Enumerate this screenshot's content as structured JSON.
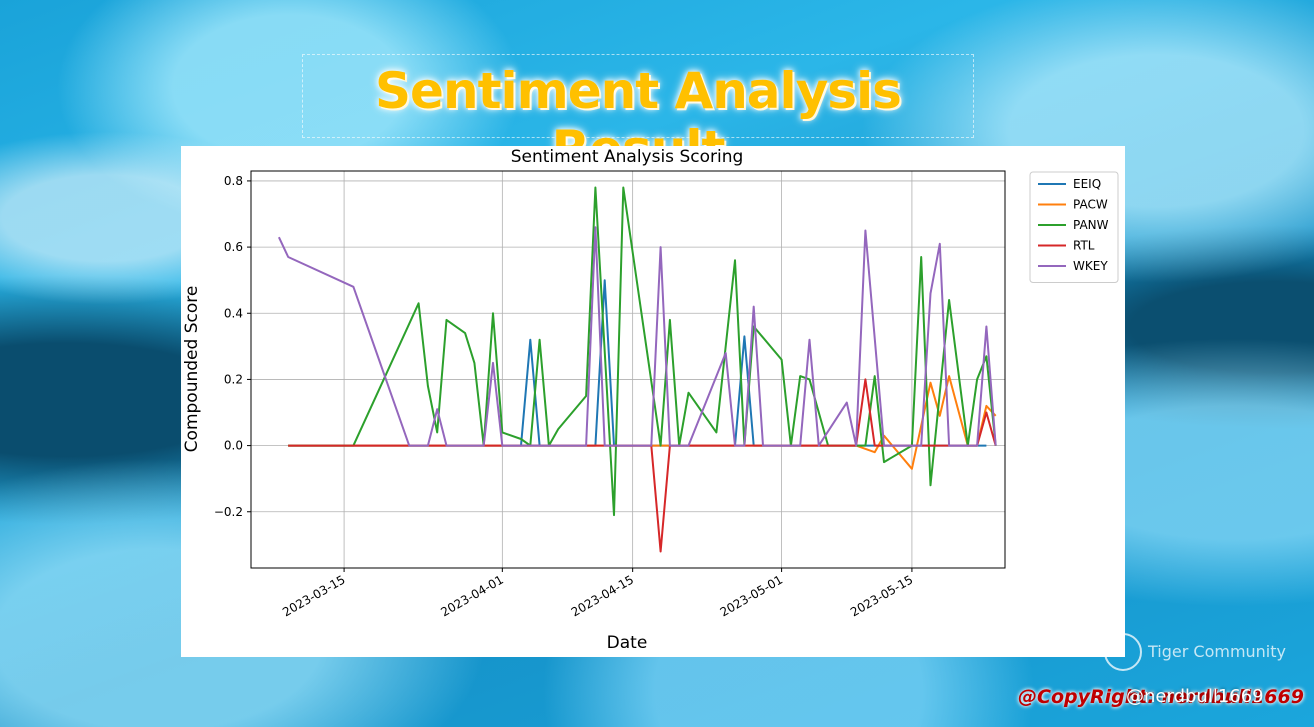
{
  "banner": {
    "title": "Sentiment Analysis Result"
  },
  "watermark": {
    "text": "Tiger Community",
    "icon": "tiger-community-logo-icon"
  },
  "footer": {
    "copyright": "@CopyRight: nerdbull1669",
    "handle": "@nerdbull1669"
  },
  "colors": {
    "EEIQ": "#1f77b4",
    "PACW": "#ff7f0e",
    "PANW": "#2ca02c",
    "RTL": "#d62728",
    "WKEY": "#9467bd",
    "title": "#ffc000",
    "copyright": "#c00000"
  },
  "chart_data": {
    "type": "line",
    "title": "Sentiment Analysis Scoring",
    "xlabel": "Date",
    "ylabel": "Compounded Score",
    "xlim": [
      "2023-03-05",
      "2023-05-25"
    ],
    "ylim": [
      -0.37,
      0.83
    ],
    "x_ticks": [
      "2023-03-15",
      "2023-04-01",
      "2023-04-15",
      "2023-05-01",
      "2023-05-15"
    ],
    "y_ticks": [
      -0.2,
      0.0,
      0.2,
      0.4,
      0.6,
      0.8
    ],
    "y_tick_labels": [
      "−0.2",
      "0.0",
      "0.2",
      "0.4",
      "0.6",
      "0.8"
    ],
    "grid": true,
    "legend_position": "outside-top-right",
    "series": [
      {
        "name": "EEIQ",
        "color": "#1f77b4",
        "points": [
          [
            "2023-03-09",
            0.0
          ],
          [
            "2023-04-03",
            0.0
          ],
          [
            "2023-04-04",
            0.32
          ],
          [
            "2023-04-05",
            0.0
          ],
          [
            "2023-04-11",
            0.0
          ],
          [
            "2023-04-12",
            0.5
          ],
          [
            "2023-04-13",
            0.0
          ],
          [
            "2023-04-26",
            0.0
          ],
          [
            "2023-04-27",
            0.33
          ],
          [
            "2023-04-28",
            0.0
          ],
          [
            "2023-05-23",
            0.0
          ]
        ]
      },
      {
        "name": "PACW",
        "color": "#ff7f0e",
        "points": [
          [
            "2023-03-09",
            0.0
          ],
          [
            "2023-05-09",
            0.0
          ],
          [
            "2023-05-11",
            -0.02
          ],
          [
            "2023-05-12",
            0.03
          ],
          [
            "2023-05-15",
            -0.07
          ],
          [
            "2023-05-17",
            0.19
          ],
          [
            "2023-05-18",
            0.09
          ],
          [
            "2023-05-19",
            0.21
          ],
          [
            "2023-05-21",
            0.0
          ],
          [
            "2023-05-22",
            0.0
          ],
          [
            "2023-05-23",
            0.12
          ],
          [
            "2023-05-24",
            0.09
          ]
        ]
      },
      {
        "name": "PANW",
        "color": "#2ca02c",
        "points": [
          [
            "2023-03-09",
            0.0
          ],
          [
            "2023-03-16",
            0.0
          ],
          [
            "2023-03-23",
            0.43
          ],
          [
            "2023-03-24",
            0.18
          ],
          [
            "2023-03-25",
            0.04
          ],
          [
            "2023-03-26",
            0.38
          ],
          [
            "2023-03-28",
            0.34
          ],
          [
            "2023-03-29",
            0.25
          ],
          [
            "2023-03-30",
            0.0
          ],
          [
            "2023-03-31",
            0.4
          ],
          [
            "2023-04-01",
            0.04
          ],
          [
            "2023-04-03",
            0.02
          ],
          [
            "2023-04-04",
            0.0
          ],
          [
            "2023-04-05",
            0.32
          ],
          [
            "2023-04-06",
            0.0
          ],
          [
            "2023-04-07",
            0.05
          ],
          [
            "2023-04-10",
            0.15
          ],
          [
            "2023-04-11",
            0.78
          ],
          [
            "2023-04-13",
            -0.21
          ],
          [
            "2023-04-14",
            0.78
          ],
          [
            "2023-04-18",
            0.0
          ],
          [
            "2023-04-19",
            0.38
          ],
          [
            "2023-04-20",
            0.0
          ],
          [
            "2023-04-21",
            0.16
          ],
          [
            "2023-04-24",
            0.04
          ],
          [
            "2023-04-26",
            0.56
          ],
          [
            "2023-04-27",
            0.0
          ],
          [
            "2023-04-28",
            0.36
          ],
          [
            "2023-05-01",
            0.26
          ],
          [
            "2023-05-02",
            0.0
          ],
          [
            "2023-05-03",
            0.21
          ],
          [
            "2023-05-04",
            0.2
          ],
          [
            "2023-05-06",
            0.0
          ],
          [
            "2023-05-10",
            0.0
          ],
          [
            "2023-05-11",
            0.21
          ],
          [
            "2023-05-12",
            -0.05
          ],
          [
            "2023-05-15",
            0.0
          ],
          [
            "2023-05-16",
            0.57
          ],
          [
            "2023-05-17",
            -0.12
          ],
          [
            "2023-05-19",
            0.44
          ],
          [
            "2023-05-21",
            0.0
          ],
          [
            "2023-05-22",
            0.2
          ],
          [
            "2023-05-23",
            0.27
          ],
          [
            "2023-05-24",
            0.0
          ]
        ]
      },
      {
        "name": "RTL",
        "color": "#d62728",
        "points": [
          [
            "2023-03-09",
            0.0
          ],
          [
            "2023-04-17",
            0.0
          ],
          [
            "2023-04-18",
            -0.32
          ],
          [
            "2023-04-19",
            0.0
          ],
          [
            "2023-05-09",
            0.0
          ],
          [
            "2023-05-10",
            0.2
          ],
          [
            "2023-05-11",
            0.0
          ],
          [
            "2023-05-22",
            0.0
          ],
          [
            "2023-05-23",
            0.1
          ],
          [
            "2023-05-24",
            0.0
          ]
        ]
      },
      {
        "name": "WKEY",
        "color": "#9467bd",
        "points": [
          [
            "2023-03-08",
            0.63
          ],
          [
            "2023-03-09",
            0.57
          ],
          [
            "2023-03-16",
            0.48
          ],
          [
            "2023-03-22",
            0.0
          ],
          [
            "2023-03-24",
            0.0
          ],
          [
            "2023-03-25",
            0.11
          ],
          [
            "2023-03-26",
            0.0
          ],
          [
            "2023-03-30",
            0.0
          ],
          [
            "2023-03-31",
            0.25
          ],
          [
            "2023-04-01",
            0.0
          ],
          [
            "2023-04-10",
            0.0
          ],
          [
            "2023-04-11",
            0.66
          ],
          [
            "2023-04-12",
            0.0
          ],
          [
            "2023-04-17",
            0.0
          ],
          [
            "2023-04-18",
            0.6
          ],
          [
            "2023-04-19",
            0.0
          ],
          [
            "2023-04-21",
            0.0
          ],
          [
            "2023-04-25",
            0.28
          ],
          [
            "2023-04-26",
            0.0
          ],
          [
            "2023-04-27",
            0.0
          ],
          [
            "2023-04-28",
            0.42
          ],
          [
            "2023-04-29",
            0.0
          ],
          [
            "2023-05-03",
            0.0
          ],
          [
            "2023-05-04",
            0.32
          ],
          [
            "2023-05-05",
            0.0
          ],
          [
            "2023-05-08",
            0.13
          ],
          [
            "2023-05-09",
            0.0
          ],
          [
            "2023-05-10",
            0.65
          ],
          [
            "2023-05-12",
            0.0
          ],
          [
            "2023-05-16",
            0.0
          ],
          [
            "2023-05-17",
            0.46
          ],
          [
            "2023-05-18",
            0.61
          ],
          [
            "2023-05-19",
            0.0
          ],
          [
            "2023-05-22",
            0.0
          ],
          [
            "2023-05-23",
            0.36
          ],
          [
            "2023-05-24",
            0.0
          ]
        ]
      }
    ]
  }
}
